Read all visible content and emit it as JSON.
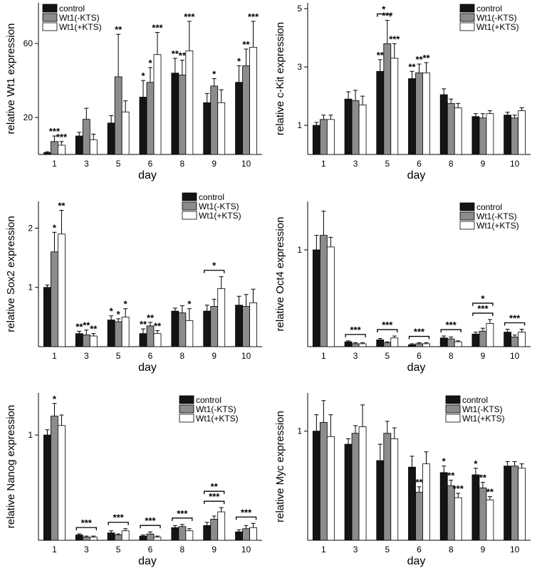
{
  "chart_data": [
    {
      "type": "bar",
      "ylabel": "relative Wt1 expression",
      "xlabel": "day",
      "categories": [
        "1",
        "3",
        "5",
        "6",
        "8",
        "9",
        "10"
      ],
      "ylim": [
        0,
        82
      ],
      "yticks": [
        20,
        60
      ],
      "legend": [
        "control",
        "Wt1(-KTS)",
        "Wt1(+KTS)"
      ],
      "legend_loc": "top-left",
      "series": [
        {
          "name": "control",
          "values": [
            1,
            10,
            17,
            31,
            44,
            28,
            39
          ],
          "errors": [
            0.5,
            2,
            4,
            9,
            8,
            5,
            9
          ]
        },
        {
          "name": "Wt1(-KTS)",
          "values": [
            7,
            19,
            42,
            39,
            43,
            37,
            48
          ],
          "errors": [
            3,
            6,
            23,
            8,
            8,
            4,
            9
          ]
        },
        {
          "name": "Wt1(+KTS)",
          "values": [
            5,
            8,
            23,
            54,
            56,
            28,
            58
          ],
          "errors": [
            2,
            3,
            6,
            12,
            16,
            7,
            14
          ]
        }
      ],
      "stars": [
        [
          "",
          "***",
          "***"
        ],
        [
          "",
          "",
          ""
        ],
        [
          "",
          "**",
          ""
        ],
        [
          "*",
          "*",
          "***"
        ],
        [
          "**",
          "**",
          "***"
        ],
        [
          "",
          "*",
          ""
        ],
        [
          "*",
          "**",
          "***"
        ]
      ],
      "brackets": []
    },
    {
      "type": "bar",
      "ylabel": "relative c-Kit expression",
      "xlabel": "day",
      "categories": [
        "1",
        "3",
        "5",
        "6",
        "8",
        "9",
        "10"
      ],
      "ylim": [
        0,
        5.2
      ],
      "yticks": [
        1,
        3,
        5
      ],
      "legend": [
        "control",
        "Wt1(-KTS)",
        "Wt1(+KTS)"
      ],
      "legend_loc": "top-right",
      "series": [
        {
          "name": "control",
          "values": [
            1.0,
            1.9,
            2.85,
            2.6,
            2.05,
            1.3,
            1.35
          ],
          "errors": [
            0.1,
            0.25,
            0.4,
            0.25,
            0.2,
            0.1,
            0.1
          ]
        },
        {
          "name": "Wt1(-KTS)",
          "values": [
            1.2,
            1.85,
            3.8,
            2.8,
            1.75,
            1.25,
            1.25
          ],
          "errors": [
            0.15,
            0.35,
            0.8,
            0.3,
            0.15,
            0.15,
            0.1
          ]
        },
        {
          "name": "Wt1(+KTS)",
          "values": [
            1.2,
            1.7,
            3.3,
            2.8,
            1.6,
            1.4,
            1.5
          ],
          "errors": [
            0.15,
            0.3,
            0.5,
            0.35,
            0.15,
            0.1,
            0.1
          ]
        }
      ],
      "stars": [
        [
          "",
          "",
          ""
        ],
        [
          "",
          "",
          ""
        ],
        [
          "**",
          "***",
          "***"
        ],
        [
          "**",
          "**",
          "**"
        ],
        [
          "",
          "",
          ""
        ],
        [
          "",
          "",
          ""
        ],
        [
          "",
          "",
          ""
        ]
      ],
      "brackets": [
        {
          "day": 2,
          "from": 0,
          "to": 1,
          "label": "*",
          "level": 0
        }
      ]
    },
    {
      "type": "bar",
      "ylabel": "relative Sox2 expression",
      "xlabel": "day",
      "categories": [
        "1",
        "3",
        "5",
        "6",
        "8",
        "9",
        "10"
      ],
      "ylim": [
        0,
        2.45
      ],
      "yticks": [
        1,
        2
      ],
      "legend": [
        "control",
        "Wt1(-KTS)",
        "Wt1(+KTS)"
      ],
      "legend_loc": "top-right",
      "series": [
        {
          "name": "control",
          "values": [
            1.0,
            0.22,
            0.45,
            0.22,
            0.6,
            0.6,
            0.7
          ],
          "errors": [
            0.04,
            0.04,
            0.07,
            0.08,
            0.05,
            0.1,
            0.15
          ]
        },
        {
          "name": "Wt1(-KTS)",
          "values": [
            1.6,
            0.2,
            0.42,
            0.35,
            0.57,
            0.68,
            0.68
          ],
          "errors": [
            0.33,
            0.08,
            0.05,
            0.06,
            0.12,
            0.12,
            0.2
          ]
        },
        {
          "name": "Wt1(+KTS)",
          "values": [
            1.9,
            0.18,
            0.5,
            0.22,
            0.44,
            0.98,
            0.74
          ],
          "errors": [
            0.4,
            0.04,
            0.14,
            0.05,
            0.2,
            0.2,
            0.23
          ]
        }
      ],
      "stars": [
        [
          "",
          "*",
          "**"
        ],
        [
          "**",
          "**",
          "**"
        ],
        [
          "*",
          "*",
          "*"
        ],
        [
          "**",
          "**",
          "**"
        ],
        [
          "",
          "",
          "*"
        ],
        [
          "",
          "",
          ""
        ],
        [
          "",
          "",
          ""
        ]
      ],
      "brackets": [
        {
          "day": 5,
          "from": 0,
          "to": 2,
          "label": "*",
          "level": 0
        }
      ]
    },
    {
      "type": "bar",
      "ylabel": "relative Oct4 expression",
      "xlabel": "day",
      "categories": [
        "1",
        "3",
        "5",
        "6",
        "8",
        "9",
        "10"
      ],
      "ylim": [
        0,
        1.5
      ],
      "yticks": [
        1
      ],
      "legend": [
        "control",
        "Wt1(-KTS)",
        "Wt1(+KTS)"
      ],
      "legend_loc": "top-right",
      "series": [
        {
          "name": "control",
          "values": [
            1.0,
            0.05,
            0.07,
            0.02,
            0.09,
            0.13,
            0.15
          ],
          "errors": [
            0.15,
            0.01,
            0.015,
            0.01,
            0.02,
            0.02,
            0.03
          ]
        },
        {
          "name": "Wt1(-KTS)",
          "values": [
            1.15,
            0.03,
            0.04,
            0.03,
            0.08,
            0.16,
            0.1
          ],
          "errors": [
            0.25,
            0.01,
            0.01,
            0.01,
            0.02,
            0.03,
            0.02
          ]
        },
        {
          "name": "Wt1(+KTS)",
          "values": [
            1.03,
            0.03,
            0.09,
            0.03,
            0.05,
            0.24,
            0.15
          ],
          "errors": [
            0.1,
            0.01,
            0.02,
            0.01,
            0.01,
            0.04,
            0.03
          ]
        }
      ],
      "stars": [
        [
          "",
          "",
          ""
        ],
        [
          "",
          "",
          ""
        ],
        [
          "",
          "",
          ""
        ],
        [
          "",
          "",
          ""
        ],
        [
          "",
          "",
          ""
        ],
        [
          "",
          "",
          ""
        ],
        [
          "",
          "",
          ""
        ]
      ],
      "brackets": [
        {
          "day": 1,
          "from": 0,
          "to": 2,
          "label": "***",
          "level": 0
        },
        {
          "day": 2,
          "from": 0,
          "to": 2,
          "label": "***",
          "level": 0
        },
        {
          "day": 3,
          "from": 0,
          "to": 2,
          "label": "***",
          "level": 0
        },
        {
          "day": 4,
          "from": 0,
          "to": 2,
          "label": "***",
          "level": 0
        },
        {
          "day": 5,
          "from": 0,
          "to": 2,
          "label": "***",
          "level": 0
        },
        {
          "day": 5,
          "from": 0,
          "to": 2,
          "label": "*",
          "level": 1
        },
        {
          "day": 6,
          "from": 0,
          "to": 2,
          "label": "***",
          "level": 0
        }
      ]
    },
    {
      "type": "bar",
      "ylabel": "relative Nanog expression",
      "xlabel": "day",
      "categories": [
        "1",
        "3",
        "5",
        "6",
        "8",
        "9",
        "10"
      ],
      "ylim": [
        0,
        1.4
      ],
      "yticks": [
        1
      ],
      "legend": [
        "control",
        "Wt1(-KTS)",
        "Wt1(+KTS)"
      ],
      "legend_loc": "top-right",
      "series": [
        {
          "name": "control",
          "values": [
            1.0,
            0.05,
            0.07,
            0.04,
            0.12,
            0.14,
            0.08
          ],
          "errors": [
            0.05,
            0.01,
            0.02,
            0.01,
            0.02,
            0.03,
            0.02
          ]
        },
        {
          "name": "Wt1(-KTS)",
          "values": [
            1.18,
            0.03,
            0.05,
            0.06,
            0.13,
            0.2,
            0.11
          ],
          "errors": [
            0.12,
            0.01,
            0.01,
            0.02,
            0.02,
            0.03,
            0.03
          ]
        },
        {
          "name": "Wt1(+KTS)",
          "values": [
            1.09,
            0.03,
            0.09,
            0.03,
            0.09,
            0.27,
            0.12
          ],
          "errors": [
            0.1,
            0.01,
            0.02,
            0.01,
            0.02,
            0.04,
            0.04
          ]
        }
      ],
      "stars": [
        [
          "",
          "*",
          ""
        ],
        [
          "",
          "",
          ""
        ],
        [
          "",
          "",
          ""
        ],
        [
          "",
          "",
          ""
        ],
        [
          "",
          "",
          ""
        ],
        [
          "",
          "",
          ""
        ],
        [
          "",
          "",
          ""
        ]
      ],
      "brackets": [
        {
          "day": 1,
          "from": 0,
          "to": 2,
          "label": "***",
          "level": 0
        },
        {
          "day": 2,
          "from": 0,
          "to": 2,
          "label": "***",
          "level": 0
        },
        {
          "day": 3,
          "from": 0,
          "to": 2,
          "label": "***",
          "level": 0
        },
        {
          "day": 4,
          "from": 0,
          "to": 2,
          "label": "***",
          "level": 0
        },
        {
          "day": 5,
          "from": 0,
          "to": 2,
          "label": "***",
          "level": 0
        },
        {
          "day": 5,
          "from": 0,
          "to": 2,
          "label": "**",
          "level": 1
        },
        {
          "day": 6,
          "from": 0,
          "to": 2,
          "label": "***",
          "level": 0
        }
      ]
    },
    {
      "type": "bar",
      "ylabel": "relative Myc expression",
      "xlabel": "day",
      "categories": [
        "1",
        "3",
        "5",
        "6",
        "8",
        "9",
        "10"
      ],
      "ylim": [
        0,
        1.35
      ],
      "yticks": [
        1
      ],
      "legend": [
        "control",
        "Wt1(-KTS)",
        "Wt1(+KTS)"
      ],
      "legend_loc": "top-right",
      "series": [
        {
          "name": "control",
          "values": [
            1.0,
            0.88,
            0.73,
            0.67,
            0.62,
            0.6,
            0.68
          ],
          "errors": [
            0.15,
            0.05,
            0.15,
            0.1,
            0.06,
            0.06,
            0.04
          ]
        },
        {
          "name": "Wt1(-KTS)",
          "values": [
            1.08,
            0.98,
            0.98,
            0.44,
            0.5,
            0.48,
            0.68
          ],
          "errors": [
            0.2,
            0.07,
            0.11,
            0.05,
            0.05,
            0.05,
            0.04
          ]
        },
        {
          "name": "Wt1(+KTS)",
          "values": [
            0.95,
            1.04,
            0.93,
            0.7,
            0.39,
            0.37,
            0.66
          ],
          "errors": [
            0.2,
            0.2,
            0.1,
            0.11,
            0.04,
            0.03,
            0.04
          ]
        }
      ],
      "stars": [
        [
          "",
          "",
          ""
        ],
        [
          "",
          "",
          ""
        ],
        [
          "",
          "",
          ""
        ],
        [
          "",
          "**",
          ""
        ],
        [
          "*",
          "**",
          "***"
        ],
        [
          "*",
          "**",
          "**"
        ],
        [
          "",
          "",
          ""
        ]
      ],
      "brackets": []
    }
  ]
}
